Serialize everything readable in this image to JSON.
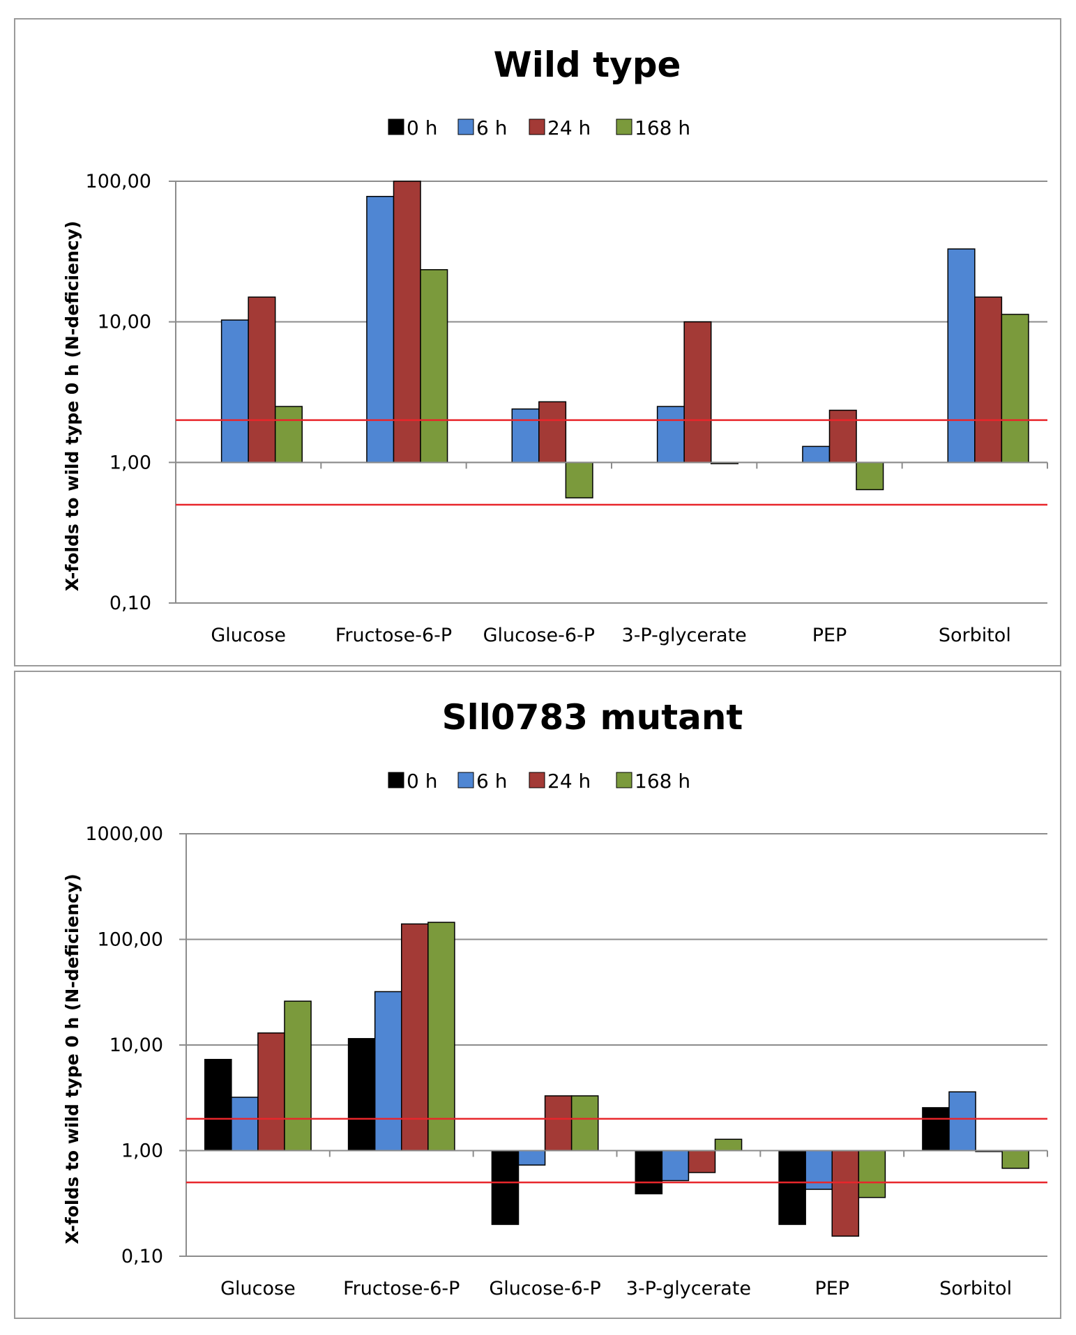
{
  "chart_data": [
    {
      "type": "bar",
      "title": "Wild type",
      "ylabel": "X-folds to wild type 0 h (N-deficiency)",
      "xlabel": "",
      "yscale": "log",
      "ylim": [
        0.1,
        100
      ],
      "yticks": [
        0.1,
        1,
        10,
        100
      ],
      "ytick_labels": [
        "0,10",
        "1,00",
        "10,00",
        "100,00"
      ],
      "grid": true,
      "legend_position": "top-center",
      "threshold_lines": [
        2,
        0.5
      ],
      "threshold_color": "#e8262b",
      "categories": [
        "Glucose",
        "Fructose-6-P",
        "Glucose-6-P",
        "3-P-glycerate",
        "PEP",
        "Sorbitol"
      ],
      "series": [
        {
          "name": "0 h",
          "color": "#000000",
          "values": [
            1,
            1,
            1,
            1,
            1,
            1
          ]
        },
        {
          "name": "6 h",
          "color": "#4f86d3",
          "values": [
            10.3,
            78,
            2.4,
            2.5,
            1.3,
            33
          ]
        },
        {
          "name": "24 h",
          "color": "#a33a36",
          "values": [
            15,
            100,
            2.7,
            10,
            2.35,
            15
          ]
        },
        {
          "name": "168 h",
          "color": "#7b9a3c",
          "values": [
            2.5,
            23.5,
            0.56,
            0.98,
            0.64,
            11.3
          ]
        }
      ]
    },
    {
      "type": "bar",
      "title": "Sll0783 mutant",
      "ylabel": "X-folds to wild type 0 h (N-deficiency)",
      "xlabel": "",
      "yscale": "log",
      "ylim": [
        0.1,
        1000
      ],
      "yticks": [
        0.1,
        1,
        10,
        100,
        1000
      ],
      "ytick_labels": [
        "0,10",
        "1,00",
        "10,00",
        "100,00",
        "1000,00"
      ],
      "grid": true,
      "legend_position": "top-center",
      "threshold_lines": [
        2,
        0.5
      ],
      "threshold_color": "#e8262b",
      "categories": [
        "Glucose",
        "Fructose-6-P",
        "Glucose-6-P",
        "3-P-glycerate",
        "PEP",
        "Sorbitol"
      ],
      "series": [
        {
          "name": "0 h",
          "color": "#000000",
          "values": [
            7.3,
            11.5,
            0.2,
            0.39,
            0.2,
            2.55
          ]
        },
        {
          "name": "6 h",
          "color": "#4f86d3",
          "values": [
            3.2,
            32,
            0.73,
            0.52,
            0.43,
            3.6
          ]
        },
        {
          "name": "24 h",
          "color": "#a33a36",
          "values": [
            13,
            140,
            3.3,
            0.62,
            0.155,
            0.98
          ]
        },
        {
          "name": "168 h",
          "color": "#7b9a3c",
          "values": [
            26,
            145,
            3.3,
            1.28,
            0.36,
            0.68
          ]
        }
      ]
    }
  ]
}
